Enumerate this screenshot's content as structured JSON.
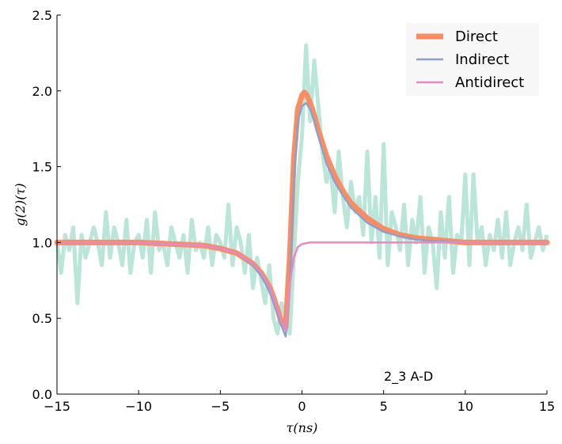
{
  "chart_data": {
    "type": "line",
    "title": "",
    "xlabel": "τ(ns)",
    "ylabel": "g(2)(τ)",
    "xlim": [
      -15,
      15
    ],
    "ylim": [
      0,
      2.5
    ],
    "xticks": [
      -15,
      -10,
      -5,
      0,
      5,
      10,
      15
    ],
    "xtick_labels": [
      "−15",
      "−10",
      "−5",
      "0",
      "5",
      "10",
      "15"
    ],
    "yticks": [
      0.0,
      0.5,
      1.0,
      1.5,
      2.0,
      2.5
    ],
    "ytick_labels": [
      "0.0",
      "0.5",
      "1.0",
      "1.5",
      "2.0",
      "2.5"
    ],
    "grid": false,
    "legend_position": "top-right",
    "annotation": "2_3 A-D",
    "colors": {
      "measured": "#b9e6d9",
      "direct": "#fc8d62",
      "indirect": "#8da0cb",
      "antidirect": "#e78ac3"
    },
    "measured": {
      "x": [
        -15,
        -14.75,
        -14.5,
        -14.25,
        -14,
        -13.75,
        -13.5,
        -13.25,
        -13,
        -12.75,
        -12.5,
        -12.25,
        -12,
        -11.75,
        -11.5,
        -11.25,
        -11,
        -10.75,
        -10.5,
        -10.25,
        -10,
        -9.75,
        -9.5,
        -9.25,
        -9,
        -8.75,
        -8.5,
        -8.25,
        -8,
        -7.75,
        -7.5,
        -7.25,
        -7,
        -6.75,
        -6.5,
        -6.25,
        -6,
        -5.75,
        -5.5,
        -5.25,
        -5,
        -4.75,
        -4.5,
        -4.25,
        -4,
        -3.75,
        -3.5,
        -3.25,
        -3,
        -2.75,
        -2.5,
        -2.25,
        -2,
        -1.75,
        -1.5,
        -1.25,
        -1,
        -0.75,
        -0.5,
        -0.25,
        0,
        0.25,
        0.5,
        0.75,
        1,
        1.25,
        1.5,
        1.75,
        2,
        2.25,
        2.5,
        2.75,
        3,
        3.25,
        3.5,
        3.75,
        4,
        4.25,
        4.5,
        4.75,
        5,
        5.25,
        5.5,
        5.75,
        6,
        6.25,
        6.5,
        6.75,
        7,
        7.25,
        7.5,
        7.75,
        8,
        8.25,
        8.5,
        8.75,
        9,
        9.25,
        9.5,
        9.75,
        10,
        10.25,
        10.5,
        10.75,
        11,
        11.25,
        11.5,
        11.75,
        12,
        12.25,
        12.5,
        12.75,
        13,
        13.25,
        13.5,
        13.75,
        14,
        14.25,
        14.5,
        14.75,
        15
      ],
      "y": [
        1.0,
        0.8,
        1.05,
        0.95,
        1.1,
        0.6,
        1.05,
        0.9,
        1.0,
        1.1,
        1.0,
        0.85,
        1.2,
        0.9,
        1.1,
        1.0,
        0.85,
        1.15,
        0.8,
        1.0,
        1.05,
        0.9,
        1.15,
        0.8,
        1.2,
        0.95,
        1.0,
        0.85,
        1.1,
        1.0,
        0.9,
        1.05,
        0.8,
        1.15,
        0.95,
        1.0,
        0.9,
        1.1,
        0.85,
        1.05,
        1.0,
        0.9,
        1.25,
        0.85,
        1.1,
        1.0,
        0.8,
        1.05,
        0.7,
        0.9,
        0.75,
        0.6,
        0.85,
        0.5,
        0.4,
        0.6,
        0.5,
        0.4,
        0.9,
        1.4,
        1.7,
        2.3,
        1.8,
        2.2,
        1.9,
        1.6,
        1.4,
        1.5,
        1.2,
        1.6,
        1.3,
        1.1,
        1.4,
        1.2,
        1.3,
        1.05,
        1.6,
        1.0,
        1.3,
        0.9,
        1.65,
        0.85,
        1.2,
        1.1,
        0.95,
        1.25,
        0.85,
        1.15,
        1.0,
        1.3,
        0.8,
        1.1,
        1.0,
        0.7,
        1.2,
        0.9,
        1.3,
        0.8,
        1.05,
        1.0,
        1.45,
        0.85,
        1.45,
        1.0,
        1.1,
        0.85,
        1.05,
        0.95,
        1.15,
        0.9,
        1.2,
        0.85,
        1.0,
        1.1,
        0.95,
        1.25,
        0.9,
        1.0,
        1.1,
        0.95,
        1.05
      ]
    },
    "series": [
      {
        "name": "Direct",
        "key": "direct",
        "stroke_width": 7,
        "x": [
          -15,
          -10,
          -8,
          -6,
          -5,
          -4,
          -3,
          -2.5,
          -2,
          -1.75,
          -1.5,
          -1.25,
          -1,
          -0.75,
          -0.5,
          -0.25,
          0,
          0.15,
          0.3,
          0.5,
          0.75,
          1,
          1.5,
          2,
          2.5,
          3,
          4,
          5,
          6,
          7,
          8,
          10,
          12,
          15
        ],
        "y": [
          1.0,
          1.0,
          0.99,
          0.98,
          0.96,
          0.93,
          0.86,
          0.8,
          0.71,
          0.64,
          0.56,
          0.47,
          0.44,
          0.9,
          1.55,
          1.88,
          1.97,
          1.99,
          1.97,
          1.92,
          1.84,
          1.74,
          1.57,
          1.44,
          1.34,
          1.26,
          1.16,
          1.09,
          1.05,
          1.03,
          1.02,
          1.0,
          1.0,
          1.0
        ]
      },
      {
        "name": "Indirect",
        "key": "indirect",
        "stroke_width": 2.5,
        "x": [
          -15,
          -10,
          -8,
          -6,
          -5,
          -4,
          -3,
          -2.5,
          -2,
          -1.75,
          -1.5,
          -1.25,
          -1,
          -0.75,
          -0.5,
          -0.25,
          0,
          0.25,
          0.5,
          0.75,
          1,
          1.5,
          2,
          2.5,
          3,
          4,
          5,
          6,
          7,
          8,
          10,
          12,
          15
        ],
        "y": [
          1.0,
          1.0,
          0.99,
          0.98,
          0.96,
          0.93,
          0.85,
          0.78,
          0.68,
          0.61,
          0.53,
          0.45,
          0.38,
          0.7,
          1.4,
          1.8,
          1.9,
          1.92,
          1.88,
          1.8,
          1.7,
          1.52,
          1.4,
          1.31,
          1.23,
          1.13,
          1.07,
          1.04,
          1.02,
          1.01,
          1.0,
          1.0,
          1.0
        ]
      },
      {
        "name": "Antidirect",
        "key": "antidirect",
        "stroke_width": 2.5,
        "x": [
          -15,
          -10,
          -8,
          -6,
          -5,
          -4,
          -3,
          -2.5,
          -2,
          -1.75,
          -1.5,
          -1.25,
          -1,
          -0.75,
          -0.5,
          -0.25,
          0,
          0.5,
          1,
          15
        ],
        "y": [
          1.0,
          1.0,
          0.99,
          0.98,
          0.96,
          0.93,
          0.86,
          0.8,
          0.71,
          0.64,
          0.56,
          0.48,
          0.42,
          0.72,
          0.9,
          0.97,
          0.99,
          1.0,
          1.0,
          1.0
        ]
      }
    ]
  }
}
